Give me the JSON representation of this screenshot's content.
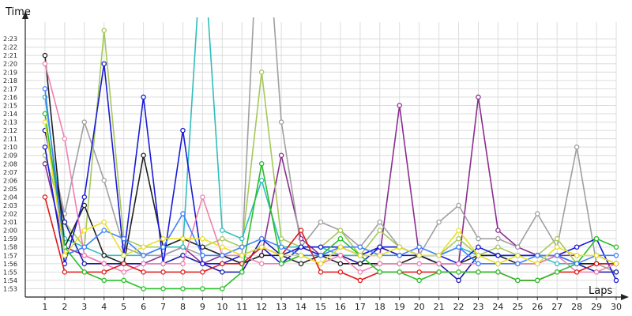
{
  "chart_data": {
    "type": "line",
    "ylabel": "Time",
    "xlabel": "Laps",
    "x": [
      1,
      2,
      3,
      4,
      5,
      6,
      7,
      8,
      9,
      10,
      11,
      12,
      13,
      14,
      15,
      16,
      17,
      18,
      19,
      20,
      21,
      22,
      23,
      24,
      25,
      26,
      27,
      28,
      29,
      30
    ],
    "xlim": [
      0,
      30
    ],
    "ylim_seconds": [
      112,
      145
    ],
    "y_ticks": [
      "1:53",
      "1:54",
      "1:55",
      "1:56",
      "1:57",
      "1:58",
      "1:59",
      "2:00",
      "2:01",
      "2:02",
      "2:03",
      "2:04",
      "2:05",
      "2:06",
      "2:07",
      "2:08",
      "2:09",
      "2:10",
      "2:11",
      "2:12",
      "2:13",
      "2:14",
      "2:15",
      "2:16",
      "2:17",
      "2:18",
      "2:19",
      "2:20",
      "2:21",
      "2:22",
      "2:23"
    ],
    "grid": true,
    "legend": "none",
    "series": [
      {
        "color": "#8a2e8f",
        "values": [
          128,
          118,
          117,
          116,
          116,
          116,
          117,
          118,
          116,
          117,
          116,
          117,
          129,
          119,
          117,
          117,
          117,
          117,
          135,
          117,
          116,
          116,
          136,
          120,
          118,
          117,
          117,
          117,
          117,
          116
        ]
      },
      {
        "color": "#a0a0a0",
        "values": [
          132,
          122,
          133,
          126,
          118,
          117,
          117,
          118,
          117,
          117,
          117,
          166,
          133,
          118,
          121,
          120,
          118,
          121,
          118,
          117,
          121,
          123,
          119,
          119,
          118,
          122,
          118,
          130,
          116,
          115
        ]
      },
      {
        "color": "#a6c85a",
        "values": [
          129,
          121,
          118,
          144,
          119,
          118,
          118,
          119,
          118,
          119,
          118,
          139,
          119,
          118,
          118,
          120,
          117,
          120,
          118,
          117,
          117,
          119,
          117,
          118,
          117,
          117,
          119,
          116,
          116,
          116
        ]
      },
      {
        "color": "#2fbdbd",
        "values": [
          136,
          119,
          118,
          117,
          117,
          117,
          118,
          118,
          156,
          120,
          119,
          126,
          118,
          118,
          118,
          117,
          117,
          118,
          118,
          117,
          117,
          118,
          117,
          117,
          117,
          117,
          116,
          116,
          116,
          116
        ]
      },
      {
        "color": "#1a1aa8",
        "values": [
          132,
          121,
          116,
          116,
          116,
          116,
          116,
          117,
          116,
          115,
          115,
          119,
          117,
          118,
          117,
          117,
          116,
          118,
          117,
          117,
          116,
          114,
          117,
          117,
          117,
          117,
          117,
          116,
          115,
          115
        ]
      },
      {
        "color": "#202020",
        "values": [
          141,
          118,
          123,
          117,
          116,
          129,
          118,
          119,
          118,
          117,
          116,
          117,
          117,
          116,
          117,
          116,
          116,
          116,
          116,
          117,
          116,
          116,
          117,
          117,
          116,
          116,
          117,
          116,
          116,
          116
        ]
      },
      {
        "color": "#1a1ad8",
        "values": [
          130,
          116,
          124,
          140,
          117,
          136,
          116,
          132,
          116,
          116,
          117,
          118,
          116,
          118,
          118,
          118,
          117,
          118,
          118,
          117,
          117,
          116,
          118,
          117,
          117,
          117,
          117,
          118,
          119,
          114
        ]
      },
      {
        "color": "#f080b0",
        "values": [
          140,
          131,
          117,
          116,
          115,
          116,
          116,
          116,
          124,
          117,
          117,
          116,
          116,
          117,
          116,
          117,
          115,
          116,
          116,
          116,
          116,
          116,
          116,
          116,
          116,
          116,
          117,
          115,
          115,
          116
        ]
      },
      {
        "color": "#e01818",
        "values": [
          124,
          115,
          115,
          115,
          116,
          115,
          115,
          115,
          115,
          116,
          116,
          118,
          117,
          120,
          115,
          115,
          114,
          115,
          115,
          115,
          115,
          115,
          115,
          115,
          114,
          114,
          115,
          115,
          116,
          116
        ]
      },
      {
        "color": "#28c028",
        "values": [
          134,
          118,
          115,
          114,
          114,
          113,
          113,
          113,
          113,
          113,
          115,
          128,
          116,
          117,
          117,
          119,
          117,
          115,
          115,
          114,
          115,
          115,
          115,
          115,
          114,
          114,
          115,
          116,
          119,
          118
        ]
      },
      {
        "color": "#4080ff",
        "values": [
          137,
          117,
          118,
          120,
          119,
          117,
          118,
          122,
          117,
          117,
          118,
          119,
          118,
          117,
          117,
          118,
          118,
          117,
          117,
          118,
          117,
          118,
          116,
          116,
          116,
          117,
          117,
          116,
          117,
          117
        ]
      },
      {
        "color": "#e8e028",
        "values": [
          133,
          117,
          120,
          121,
          117,
          118,
          119,
          119,
          119,
          118,
          117,
          118,
          117,
          117,
          116,
          118,
          117,
          117,
          118,
          117,
          117,
          120,
          117,
          116,
          117,
          116,
          118,
          117,
          117,
          116
        ]
      }
    ]
  }
}
